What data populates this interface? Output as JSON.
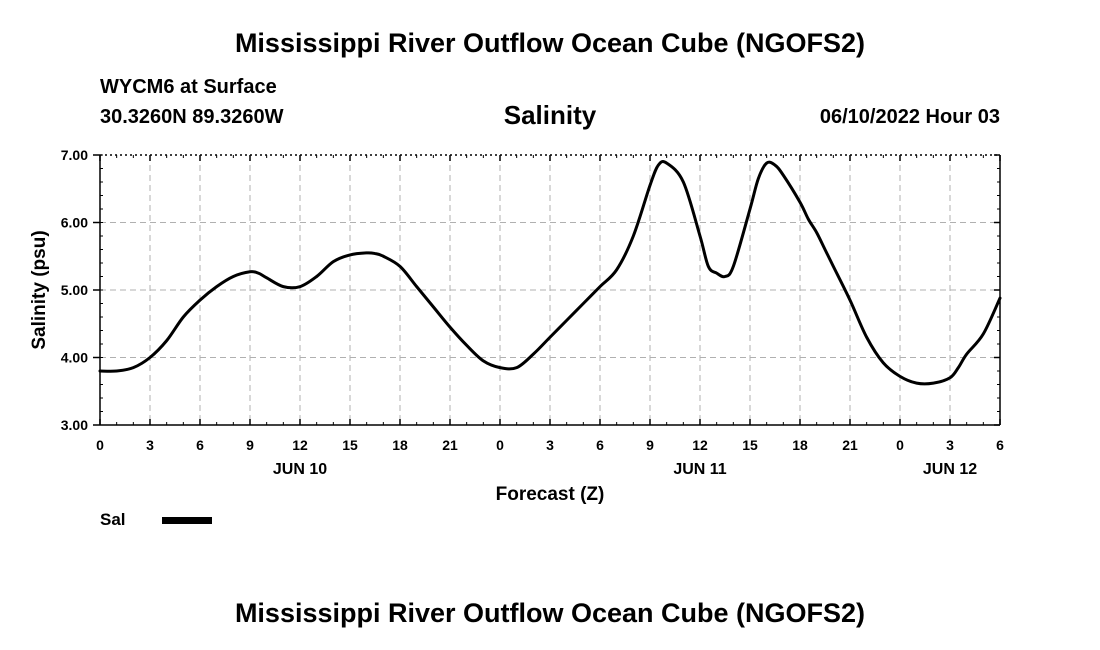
{
  "header": {
    "title": "Mississippi River Outflow Ocean Cube (NGOFS2)",
    "station": "WYCM6 at Surface",
    "coords": "30.3260N  89.3260W",
    "subtitle": "Salinity",
    "datetime": "06/10/2022 Hour 03"
  },
  "footer": {
    "title": "Mississippi River Outflow Ocean Cube (NGOFS2)"
  },
  "legend": {
    "label": "Sal"
  },
  "chart_data": {
    "type": "line",
    "title": "Salinity",
    "xlabel": "Forecast (Z)",
    "ylabel": "Salinity (psu)",
    "xlim": [
      0,
      54
    ],
    "ylim": [
      3,
      7
    ],
    "yticks": [
      "3.00",
      "4.00",
      "5.00",
      "6.00",
      "7.00"
    ],
    "xticks": [
      "0",
      "3",
      "6",
      "9",
      "12",
      "15",
      "18",
      "21",
      "0",
      "3",
      "6",
      "9",
      "12",
      "15",
      "18",
      "21",
      "0",
      "3",
      "6"
    ],
    "day_labels": [
      {
        "hour": 12,
        "label": "JUN 10"
      },
      {
        "hour": 36,
        "label": "JUN 11"
      },
      {
        "hour": 51,
        "label": "JUN 12"
      }
    ],
    "grid": true,
    "line_color": "#000000",
    "series": [
      {
        "name": "Sal",
        "x": [
          0,
          1,
          2,
          3,
          4,
          5,
          6,
          7,
          8,
          9,
          9.5,
          10,
          11,
          12,
          13,
          14,
          15,
          16,
          16.5,
          17,
          18,
          19,
          20,
          21,
          22,
          23,
          24,
          25,
          26,
          27,
          28,
          29,
          30,
          31,
          32,
          33,
          33.5,
          34,
          35,
          36,
          36.5,
          37,
          37.5,
          38,
          39,
          39.5,
          40,
          40.5,
          41,
          42,
          42.5,
          43,
          43.5,
          44,
          45,
          46,
          47,
          48,
          49,
          50,
          51,
          51.5,
          52,
          53,
          54
        ],
        "y": [
          3.8,
          3.8,
          3.85,
          4.0,
          4.25,
          4.6,
          4.85,
          5.05,
          5.2,
          5.27,
          5.25,
          5.18,
          5.05,
          5.05,
          5.2,
          5.42,
          5.52,
          5.55,
          5.54,
          5.5,
          5.35,
          5.05,
          4.75,
          4.45,
          4.18,
          3.95,
          3.85,
          3.85,
          4.05,
          4.3,
          4.55,
          4.8,
          5.05,
          5.3,
          5.8,
          6.55,
          6.85,
          6.88,
          6.6,
          5.8,
          5.35,
          5.25,
          5.2,
          5.35,
          6.2,
          6.65,
          6.88,
          6.85,
          6.7,
          6.3,
          6.05,
          5.85,
          5.6,
          5.35,
          4.85,
          4.3,
          3.92,
          3.72,
          3.62,
          3.62,
          3.7,
          3.85,
          4.05,
          4.35,
          4.88
        ]
      }
    ]
  }
}
